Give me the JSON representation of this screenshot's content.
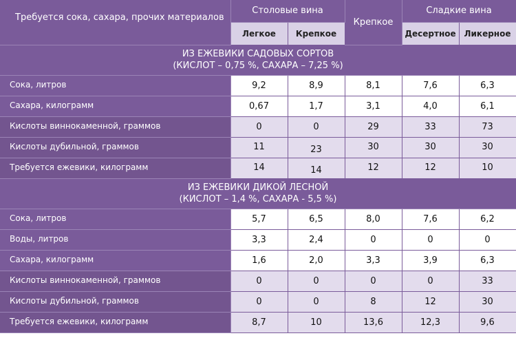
{
  "header": {
    "main": "Требуется сока, сахара, прочих материалов",
    "table_wines": "Столовые вина",
    "light": "Легкое",
    "strong": "Крепкое",
    "fortified": "Крепкое",
    "sweet_wines": "Сладкие вина",
    "dessert": "Десертное",
    "liqueur": "Ликерное"
  },
  "sections": [
    {
      "title": "ИЗ ЕЖЕВИКИ САДОВЫХ СОРТОВ",
      "subtitle": "(КИСЛОТ – 0,75 %, САХАРА – 7,25 %)",
      "rows": [
        {
          "label": "Сока, литров",
          "values": [
            "9,2",
            "8,9",
            "8,1",
            "7,6",
            "6,3"
          ]
        },
        {
          "label": "Сахара, килограмм",
          "values": [
            "0,67",
            "1,7",
            "3,1",
            "4,0",
            "6,1"
          ]
        },
        {
          "label": "Кислоты виннокаменной, граммов",
          "values": [
            "0",
            "0",
            "29",
            "33",
            "73"
          ]
        },
        {
          "label": "Кислоты дубильной, граммов",
          "values": [
            "11",
            "23",
            "30",
            "30",
            "30"
          ]
        },
        {
          "label": "Требуется ежевики, килограмм",
          "values": [
            "14",
            "14",
            "12",
            "12",
            "10"
          ]
        }
      ]
    },
    {
      "title": "ИЗ ЕЖЕВИКИ ДИКОЙ ЛЕСНОЙ",
      "subtitle": "(КИСЛОТ – 1,4 %, САХАРА - 5,5 %)",
      "rows": [
        {
          "label": "Сока, литров",
          "values": [
            "5,7",
            "6,5",
            "8,0",
            "7,6",
            "6,2"
          ]
        },
        {
          "label": "Воды, литров",
          "values": [
            "3,3",
            "2,4",
            "0",
            "0",
            "0"
          ]
        },
        {
          "label": "Сахара, килограмм",
          "values": [
            "1,6",
            "2,0",
            "3,3",
            "3,9",
            "6,3"
          ]
        },
        {
          "label": "Кислоты виннокаменной, граммов",
          "values": [
            "0",
            "0",
            "0",
            "0",
            "33"
          ]
        },
        {
          "label": "Кислоты дубильной, граммов",
          "values": [
            "0",
            "0",
            "8",
            "12",
            "30"
          ]
        },
        {
          "label": "Требуется ежевики, килограмм",
          "values": [
            "8,7",
            "10",
            "13,6",
            "12,3",
            "9,6"
          ]
        }
      ]
    }
  ],
  "colors": {
    "header_bg": "#7a5b9a",
    "subheader_bg": "#d9d1e6",
    "row_alt_bg": "#e3dced",
    "row_bg": "#ffffff"
  }
}
